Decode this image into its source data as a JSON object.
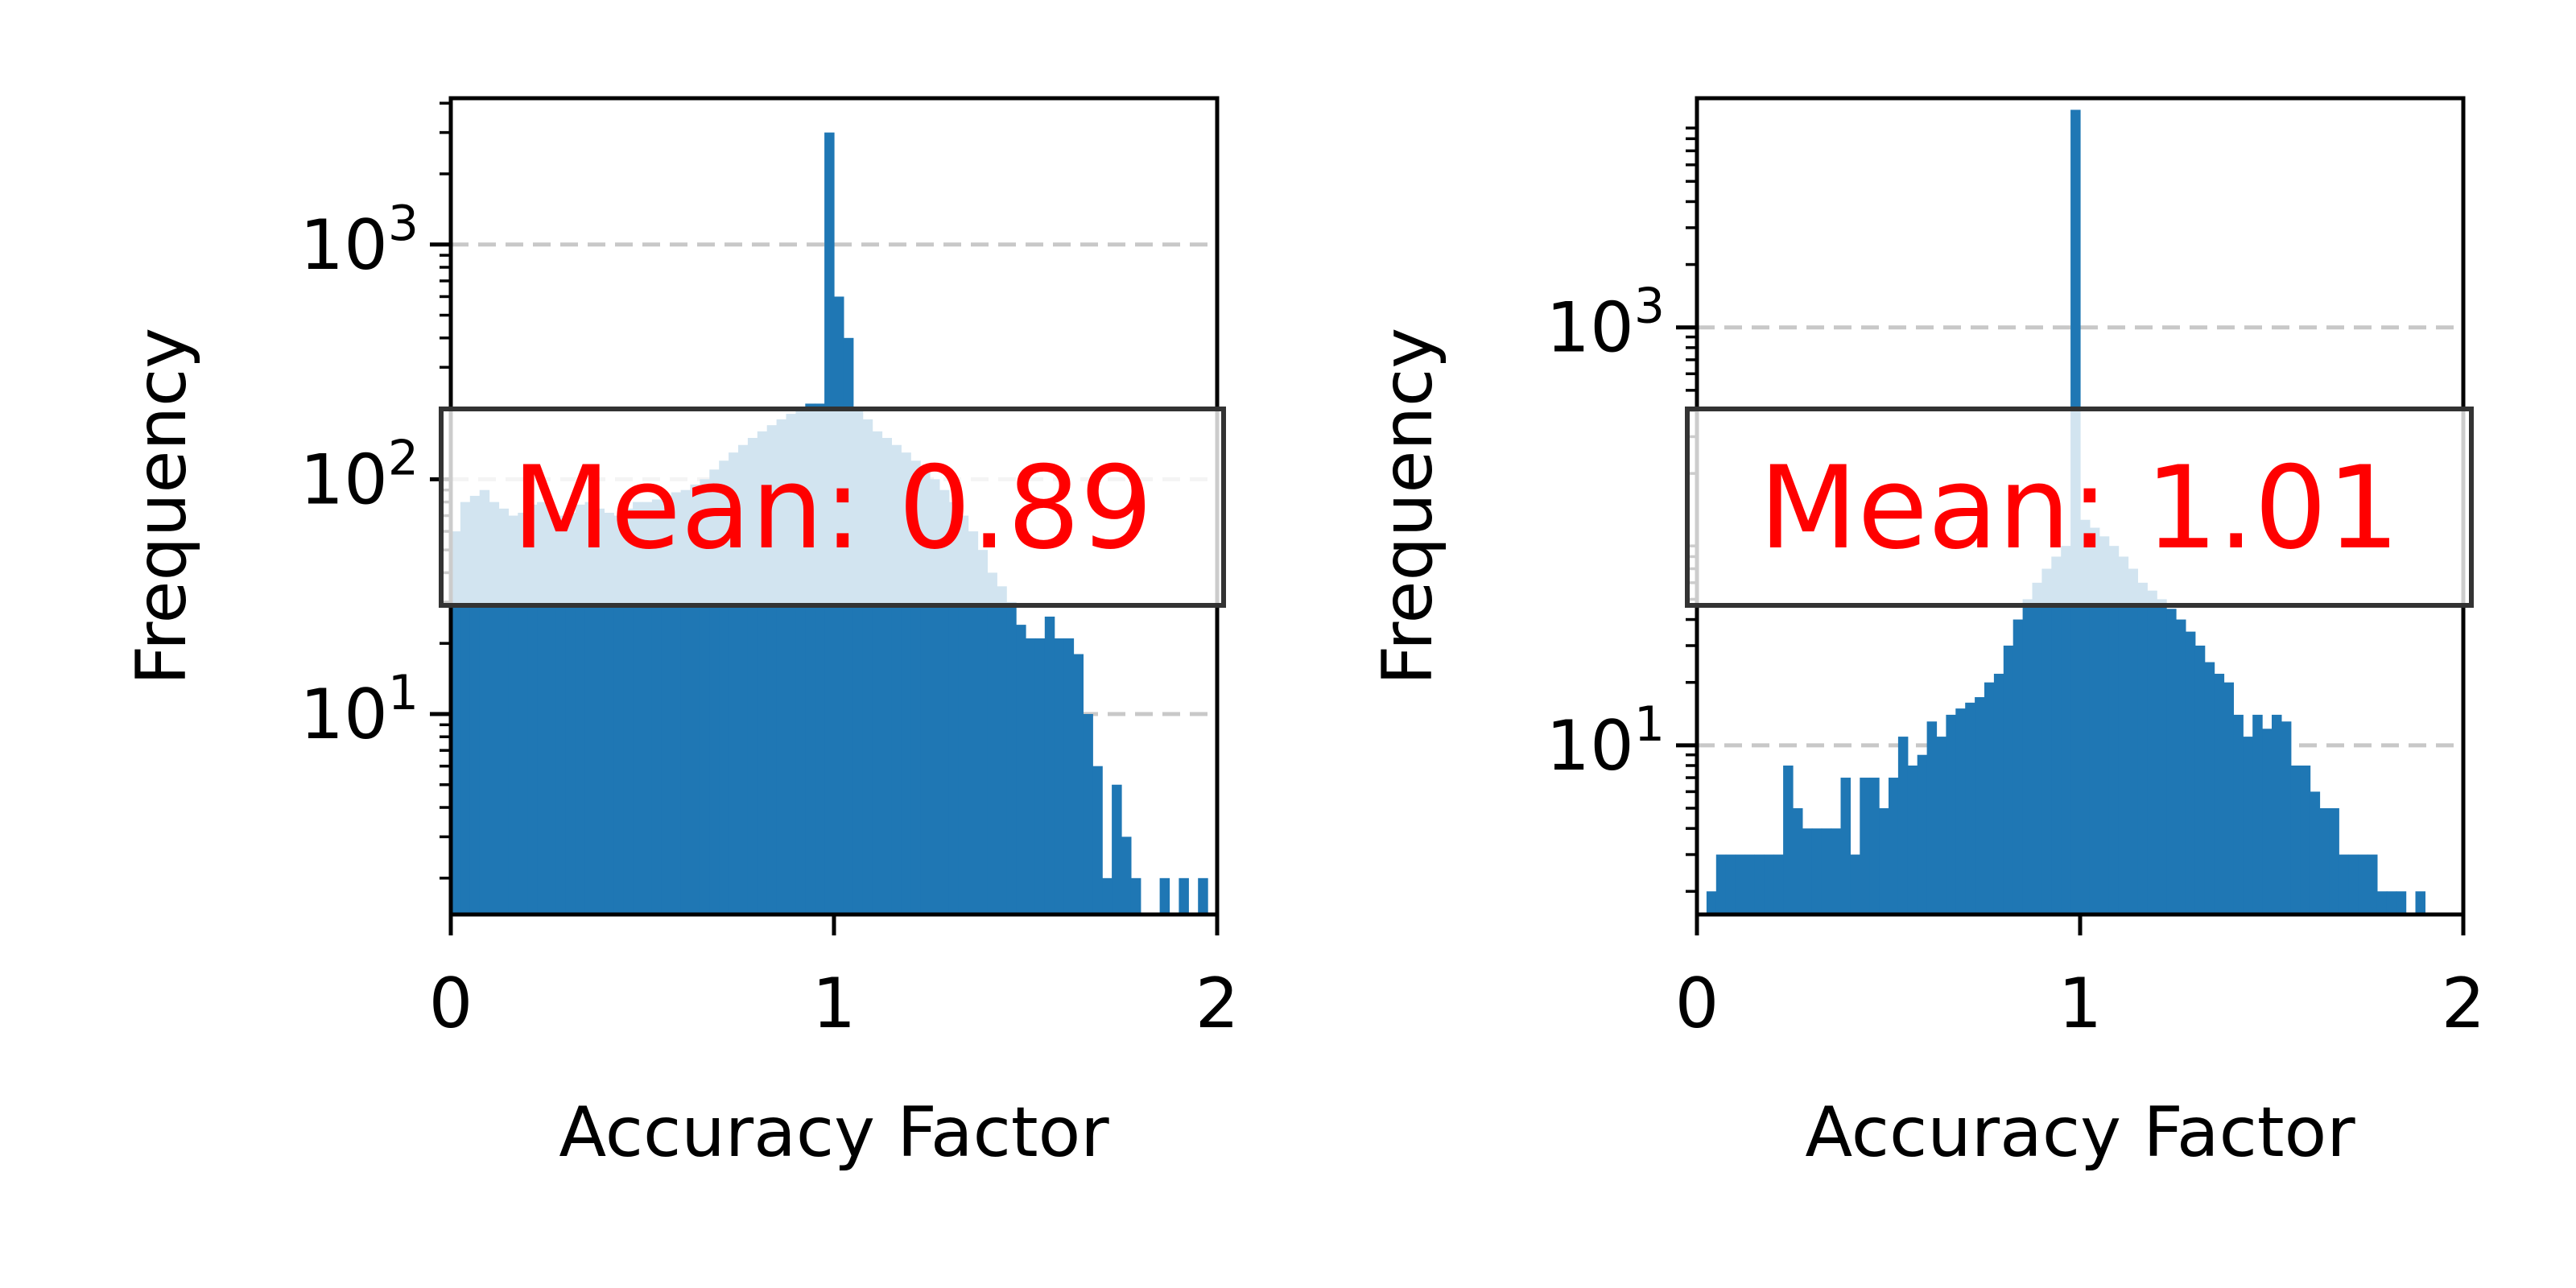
{
  "chart_data": [
    {
      "type": "bar",
      "title": "",
      "xlabel": "Accuracy Factor",
      "ylabel": "Frequency",
      "xlim": [
        0,
        2
      ],
      "ylim": [
        1.4,
        4200
      ],
      "yscale": "log",
      "xticks": [
        0,
        1,
        2
      ],
      "yticks": [
        10,
        100,
        1000
      ],
      "ytick_labels": [
        {
          "base": "10",
          "exp": "1"
        },
        {
          "base": "10",
          "exp": "2"
        },
        {
          "base": "10",
          "exp": "3"
        }
      ],
      "grid": "y dashed",
      "bar_color": "#1f77b4",
      "bin_width": 0.025,
      "bins_start": [
        0.0,
        0.025,
        0.05,
        0.075,
        0.1,
        0.125,
        0.15,
        0.175,
        0.2,
        0.225,
        0.25,
        0.275,
        0.3,
        0.325,
        0.35,
        0.375,
        0.4,
        0.425,
        0.45,
        0.475,
        0.5,
        0.525,
        0.55,
        0.575,
        0.6,
        0.625,
        0.65,
        0.675,
        0.7,
        0.725,
        0.75,
        0.775,
        0.8,
        0.825,
        0.85,
        0.875,
        0.9,
        0.925,
        0.95,
        0.975,
        1.0,
        1.025,
        1.05,
        1.075,
        1.1,
        1.125,
        1.15,
        1.175,
        1.2,
        1.225,
        1.25,
        1.275,
        1.3,
        1.325,
        1.35,
        1.375,
        1.4,
        1.425,
        1.45,
        1.475,
        1.5,
        1.525,
        1.55,
        1.575,
        1.6,
        1.625,
        1.65,
        1.675,
        1.7,
        1.725,
        1.75,
        1.775,
        1.8,
        1.825,
        1.85,
        1.875,
        1.9,
        1.925,
        1.95,
        1.975
      ],
      "values": [
        60,
        80,
        85,
        90,
        80,
        75,
        70,
        72,
        78,
        80,
        75,
        70,
        72,
        78,
        80,
        75,
        72,
        70,
        75,
        80,
        80,
        82,
        85,
        88,
        90,
        95,
        100,
        110,
        120,
        130,
        140,
        150,
        160,
        170,
        180,
        190,
        200,
        210,
        210,
        3000,
        600,
        400,
        200,
        180,
        160,
        150,
        140,
        130,
        120,
        110,
        100,
        90,
        80,
        70,
        60,
        50,
        40,
        35,
        30,
        24,
        21,
        21,
        26,
        21,
        21,
        18,
        10,
        6,
        2,
        5,
        3,
        2,
        0,
        0,
        2,
        0,
        2,
        0,
        2,
        0
      ],
      "annotation": "Mean: 0.89",
      "annotation_color": "#ff0000"
    },
    {
      "type": "bar",
      "title": "",
      "xlabel": "Accuracy Factor",
      "ylabel": "Frequency",
      "xlim": [
        0,
        2
      ],
      "ylim": [
        1.55,
        12500
      ],
      "yscale": "log",
      "xticks": [
        0,
        1,
        2
      ],
      "yticks": [
        10,
        1000
      ],
      "ytick_labels": [
        {
          "base": "10",
          "exp": "1"
        },
        {
          "base": "10",
          "exp": "3"
        }
      ],
      "grid": "y dashed",
      "bar_color": "#1f77b4",
      "bin_width": 0.025,
      "bins_start": [
        0.0,
        0.025,
        0.05,
        0.075,
        0.1,
        0.125,
        0.15,
        0.175,
        0.2,
        0.225,
        0.25,
        0.275,
        0.3,
        0.325,
        0.35,
        0.375,
        0.4,
        0.425,
        0.45,
        0.475,
        0.5,
        0.525,
        0.55,
        0.575,
        0.6,
        0.625,
        0.65,
        0.675,
        0.7,
        0.725,
        0.75,
        0.775,
        0.8,
        0.825,
        0.85,
        0.875,
        0.9,
        0.925,
        0.95,
        0.975,
        1.0,
        1.025,
        1.05,
        1.075,
        1.1,
        1.125,
        1.15,
        1.175,
        1.2,
        1.225,
        1.25,
        1.275,
        1.3,
        1.325,
        1.35,
        1.375,
        1.4,
        1.425,
        1.45,
        1.475,
        1.5,
        1.525,
        1.55,
        1.575,
        1.6,
        1.625,
        1.65,
        1.675,
        1.7,
        1.725,
        1.75,
        1.775,
        1.8,
        1.825,
        1.85,
        1.875,
        1.9,
        1.925,
        1.95,
        1.975
      ],
      "values": [
        0,
        2,
        3,
        3,
        3,
        3,
        3,
        3,
        3,
        8,
        5,
        4,
        4,
        4,
        4,
        7,
        3,
        7,
        7,
        5,
        7,
        11,
        8,
        9,
        13,
        11,
        14,
        15,
        16,
        17,
        20,
        22,
        30,
        40,
        50,
        60,
        70,
        80,
        90,
        11000,
        120,
        110,
        100,
        90,
        80,
        70,
        60,
        55,
        50,
        45,
        40,
        35,
        30,
        25,
        22,
        20,
        14,
        11,
        14,
        12,
        14,
        13,
        8,
        8,
        6,
        5,
        5,
        3,
        3,
        3,
        3,
        2,
        2,
        2,
        0,
        2,
        0,
        0,
        0,
        0
      ],
      "annotation": "Mean: 1.01",
      "annotation_color": "#ff0000"
    }
  ]
}
